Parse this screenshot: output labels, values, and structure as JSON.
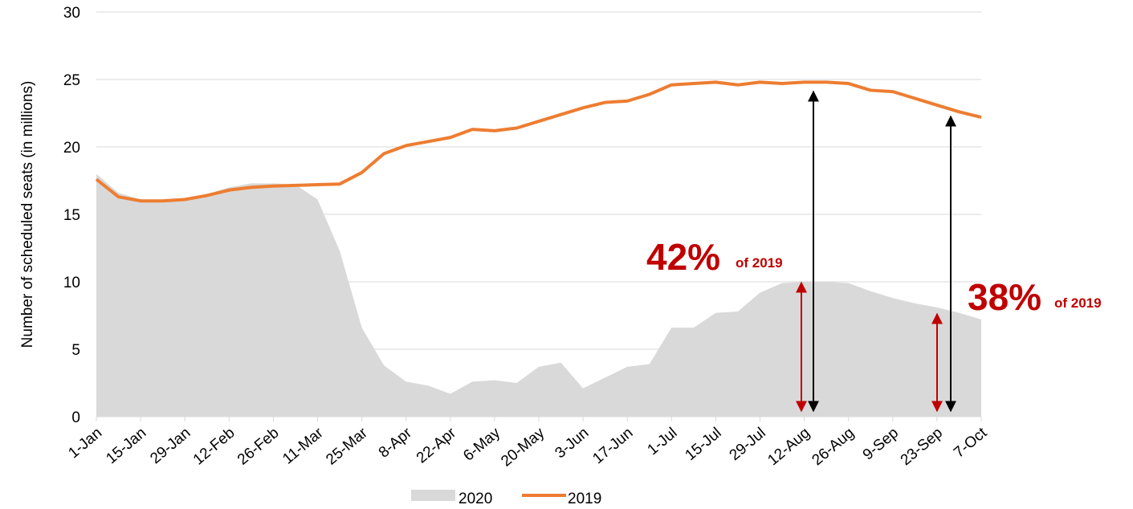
{
  "chart_data": {
    "type": "line",
    "y_label": "Number of scheduled seats (in millions)",
    "categories": [
      "1-Jan",
      null,
      "15-Jan",
      null,
      "29-Jan",
      null,
      "12-Feb",
      null,
      "26-Feb",
      null,
      "11-Mar",
      null,
      "25-Mar",
      null,
      "8-Apr",
      null,
      "22-Apr",
      null,
      "6-May",
      null,
      "20-May",
      null,
      "3-Jun",
      null,
      "17-Jun",
      null,
      "1-Jul",
      null,
      "15-Jul",
      null,
      "29-Jul",
      null,
      "12-Aug",
      null,
      "26-Aug",
      null,
      "9-Sep",
      null,
      "23-Sep",
      null,
      "7-Oct"
    ],
    "series": [
      {
        "name": "2020",
        "kind": "area",
        "color": "#d9d9d9",
        "values": [
          18.0,
          16.6,
          16.1,
          16.1,
          16.2,
          16.5,
          17.0,
          17.3,
          17.3,
          17.2,
          16.1,
          12.3,
          6.6,
          3.8,
          2.6,
          2.3,
          1.7,
          2.6,
          2.7,
          2.5,
          3.7,
          4.0,
          2.1,
          2.9,
          3.7,
          3.9,
          6.6,
          6.6,
          7.7,
          7.8,
          9.2,
          9.9,
          10.0,
          10.0,
          9.9,
          9.3,
          8.8,
          8.4,
          8.1,
          7.7,
          7.2
        ]
      },
      {
        "name": "2019",
        "kind": "line",
        "color": "#ed7d31",
        "values": [
          17.6,
          16.3,
          16.0,
          16.0,
          16.1,
          16.4,
          16.8,
          17.0,
          17.1,
          17.15,
          17.2,
          17.25,
          18.1,
          19.5,
          20.1,
          20.4,
          20.7,
          21.3,
          21.2,
          21.4,
          21.9,
          22.4,
          22.9,
          23.3,
          23.4,
          23.9,
          24.6,
          24.7,
          24.8,
          24.6,
          24.8,
          24.7,
          24.8,
          24.8,
          24.7,
          24.2,
          24.1,
          23.6,
          23.1,
          22.6,
          22.2
        ]
      }
    ],
    "ylim": [
      0,
      30
    ],
    "yticks": [
      0,
      5,
      10,
      15,
      20,
      25,
      30
    ],
    "grid": true,
    "legend": "bottom",
    "annotations": [
      "42%",
      "of 2019",
      "38%",
      "of 2019"
    ]
  }
}
